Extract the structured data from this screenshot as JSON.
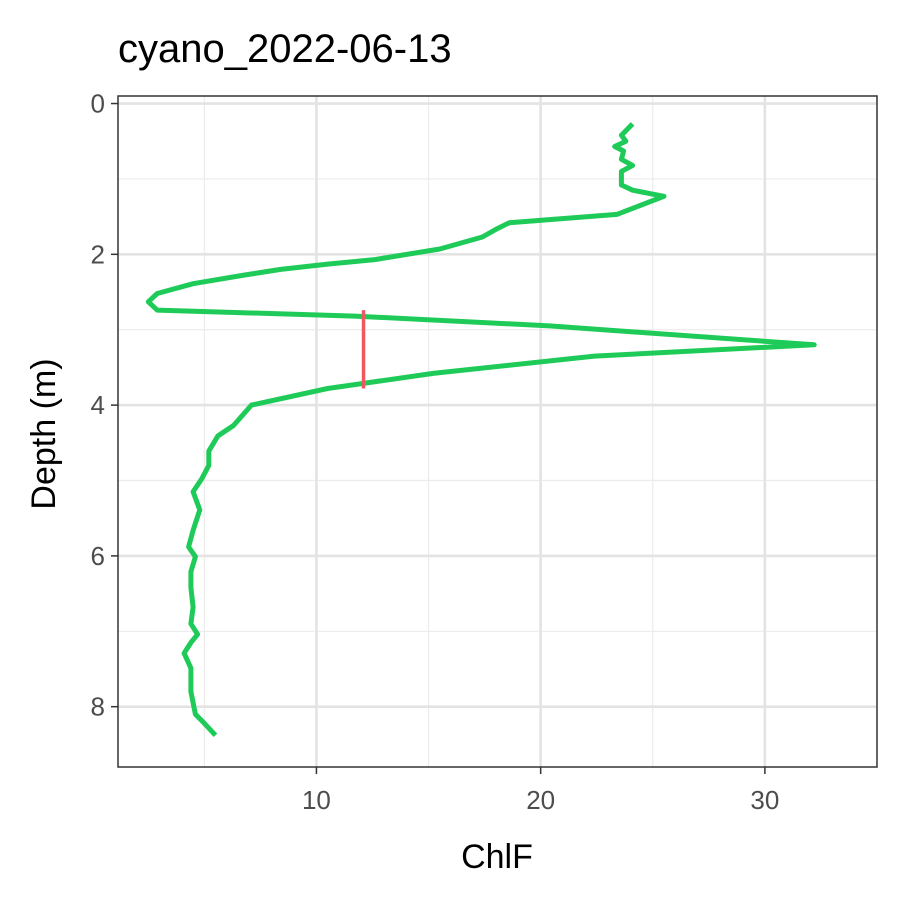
{
  "chart_data": {
    "type": "line",
    "title": "cyano_2022-06-13",
    "xlabel": "ChlF",
    "ylabel": "Depth (m)",
    "xlim": [
      1.15,
      35.0
    ],
    "ylim": [
      8.8,
      -0.1
    ],
    "y_reversed": true,
    "xticks": [
      10,
      20,
      30
    ],
    "yticks": [
      0,
      2,
      4,
      6,
      8
    ],
    "grid": true,
    "series": [
      {
        "color": "#1fcb58",
        "points": [
          [
            24.1,
            0.27
          ],
          [
            23.6,
            0.42
          ],
          [
            23.8,
            0.5
          ],
          [
            23.3,
            0.57
          ],
          [
            23.7,
            0.63
          ],
          [
            23.6,
            0.74
          ],
          [
            24.1,
            0.82
          ],
          [
            23.6,
            0.9
          ],
          [
            23.6,
            1.08
          ],
          [
            24.1,
            1.15
          ],
          [
            25.5,
            1.23
          ],
          [
            23.4,
            1.47
          ],
          [
            18.6,
            1.58
          ],
          [
            18.0,
            1.67
          ],
          [
            17.4,
            1.77
          ],
          [
            15.5,
            1.93
          ],
          [
            12.6,
            2.07
          ],
          [
            10.5,
            2.13
          ],
          [
            8.4,
            2.2
          ],
          [
            6.7,
            2.28
          ],
          [
            4.5,
            2.39
          ],
          [
            2.9,
            2.52
          ],
          [
            2.5,
            2.63
          ],
          [
            2.9,
            2.74
          ],
          [
            11.7,
            2.82
          ],
          [
            20.4,
            2.95
          ],
          [
            32.2,
            3.2
          ],
          [
            22.4,
            3.35
          ],
          [
            15.2,
            3.58
          ],
          [
            10.5,
            3.78
          ],
          [
            7.1,
            4.0
          ],
          [
            6.3,
            4.27
          ],
          [
            5.6,
            4.41
          ],
          [
            5.2,
            4.61
          ],
          [
            5.2,
            4.8
          ],
          [
            4.9,
            4.97
          ],
          [
            4.5,
            5.15
          ],
          [
            4.8,
            5.39
          ],
          [
            4.5,
            5.66
          ],
          [
            4.3,
            5.88
          ],
          [
            4.6,
            6.01
          ],
          [
            4.4,
            6.21
          ],
          [
            4.4,
            6.42
          ],
          [
            4.5,
            6.68
          ],
          [
            4.4,
            6.9
          ],
          [
            4.7,
            7.04
          ],
          [
            4.4,
            7.15
          ],
          [
            4.1,
            7.29
          ],
          [
            4.4,
            7.49
          ],
          [
            4.4,
            7.8
          ],
          [
            4.6,
            8.1
          ],
          [
            5.0,
            8.22
          ],
          [
            5.5,
            8.38
          ]
        ]
      }
    ],
    "annotations": [
      {
        "type": "vertical-segment",
        "x": 12.1,
        "y_from": 2.74,
        "y_to": 3.78,
        "color": "#f0585f"
      }
    ]
  }
}
